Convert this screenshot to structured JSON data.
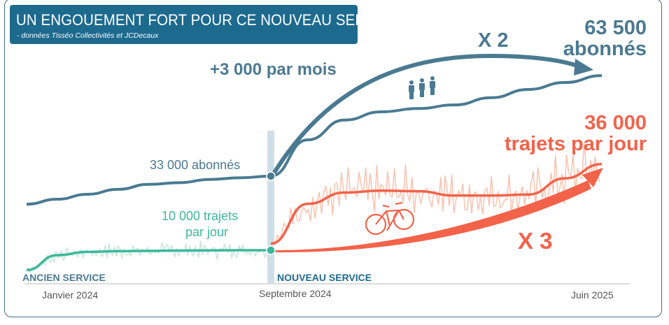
{
  "header": {
    "title": "UN ENGOUEMENT FORT POUR CE NOUVEAU SERVICE",
    "subtitle": "- données Tisséo Collectivités et JCDecaux"
  },
  "annotations": {
    "monthly_growth": "+3 000 par mois",
    "x2": "X 2",
    "subs_end_1": "63 500",
    "subs_end_2": "abonnés",
    "subs_start": "33 000 abonnés",
    "trips_end_1": "36 000",
    "trips_end_2": "trajets par jour",
    "trips_start_1": "10 000 trajets",
    "trips_start_2": "par jour",
    "x3": "X 3",
    "old_service": "ANCIEN SERVICE",
    "new_service": "NOUVEAU SERVICE"
  },
  "icons": [
    "people-icon",
    "bicycle-icon"
  ],
  "colors": {
    "subscribers": "#4a7a92",
    "old_trips": "#3bb89a",
    "new_trips": "#f2634a",
    "new_trips_daily": "#f9c2ad",
    "old_trips_daily": "#c7e6dc",
    "header": "#1d6a8f"
  },
  "chart_data": {
    "type": "line",
    "x_ticks": [
      "Janvier 2024",
      "Septembre 2024",
      "Juin 2025"
    ],
    "x": [
      "2024-01",
      "2024-02",
      "2024-03",
      "2024-04",
      "2024-05",
      "2024-06",
      "2024-07",
      "2024-08",
      "2024-09",
      "2024-10",
      "2024-11",
      "2024-12",
      "2025-01",
      "2025-02",
      "2025-03",
      "2025-04",
      "2025-05",
      "2025-06"
    ],
    "series": [
      {
        "key": "subscribers",
        "values": [
          24500,
          26000,
          27500,
          29000,
          30500,
          31000,
          32000,
          32500,
          33000,
          44000,
          50000,
          52500,
          53500,
          54600,
          56800,
          59300,
          61400,
          63500
        ]
      },
      {
        "key": "trips_old_service",
        "values": [
          4000,
          8500,
          9500,
          9700,
          9800,
          9900,
          9950,
          10000,
          10000,
          null,
          null,
          null,
          null,
          null,
          null,
          null,
          null,
          null
        ]
      },
      {
        "key": "trips_new_service",
        "values": [
          null,
          null,
          null,
          null,
          null,
          null,
          null,
          null,
          12000,
          24000,
          27400,
          28000,
          27800,
          26500,
          26500,
          26800,
          31700,
          36000
        ]
      }
    ],
    "grid": false,
    "legend": "none"
  }
}
